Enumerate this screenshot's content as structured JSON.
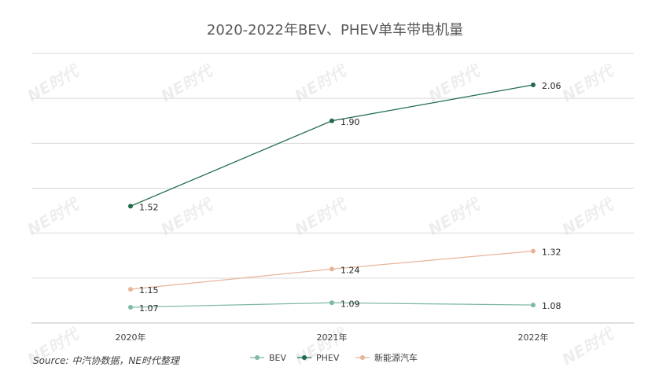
{
  "title": "2020-2022年BEV、PHEV单车带电机量",
  "source": "Source: 中汽协数据，NE时代整理",
  "watermark": "NE时代",
  "chart_data": {
    "type": "line",
    "title": "2020-2022年BEV、PHEV单车带电机量",
    "categories": [
      "2020年",
      "2021年",
      "2022年"
    ],
    "series": [
      {
        "name": "BEV",
        "values": [
          1.07,
          1.09,
          1.08
        ],
        "color": "#7fb9a0"
      },
      {
        "name": "PHEV",
        "values": [
          1.52,
          1.9,
          2.06
        ],
        "color": "#1e6b4a"
      },
      {
        "name": "新能源汽车",
        "values": [
          1.15,
          1.24,
          1.32
        ],
        "color": "#e8b49a"
      }
    ],
    "ylim": [
      1.0,
      2.2
    ],
    "grid": true,
    "legend": "bottom",
    "data_labels": true,
    "xlabel": "",
    "ylabel": ""
  }
}
